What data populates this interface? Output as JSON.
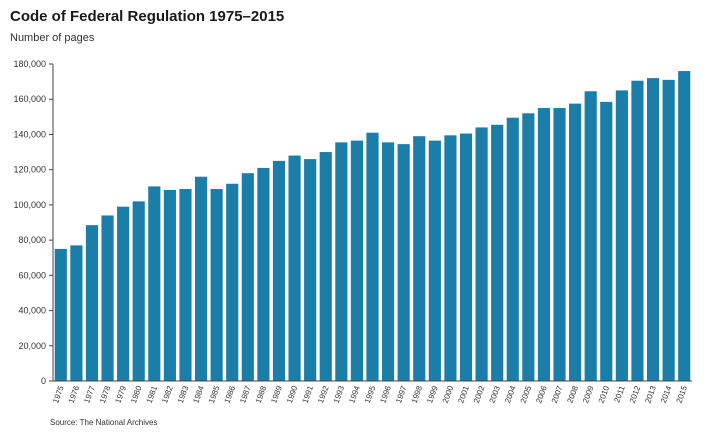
{
  "header": {
    "title": "Code of Federal Regulation 1975–2015",
    "subtitle": "Number of pages"
  },
  "footer": {
    "source": "Source: The National Archives"
  },
  "colors": {
    "bar": "#1a7ea8",
    "axis": "#444444"
  },
  "chart_data": {
    "type": "bar",
    "title": "Code of Federal Regulation 1975–2015",
    "ylabel": "Number of pages",
    "xlabel": "",
    "ylim": [
      0,
      180000
    ],
    "yticks": [
      0,
      20000,
      40000,
      60000,
      80000,
      100000,
      120000,
      140000,
      160000,
      180000
    ],
    "ytick_labels": [
      "0",
      "20,000",
      "40,000",
      "60,000",
      "80,000",
      "100,000",
      "120,000",
      "140,000",
      "160,000",
      "180,000"
    ],
    "grid": false,
    "categories": [
      "1975",
      "1976",
      "1977",
      "1978",
      "1979",
      "1980",
      "1981",
      "1982",
      "1983",
      "1984",
      "1985",
      "1986",
      "1987",
      "1988",
      "1989",
      "1990",
      "1991",
      "1992",
      "1993",
      "1994",
      "1995",
      "1996",
      "1997",
      "1998",
      "1999",
      "2000",
      "2001",
      "2002",
      "2003",
      "2004",
      "2005",
      "2006",
      "2007",
      "2008",
      "2009",
      "2010",
      "2011",
      "2012",
      "2013",
      "2014",
      "2015"
    ],
    "values": [
      75000,
      77000,
      88500,
      94000,
      99000,
      102000,
      110500,
      108500,
      109000,
      116000,
      109000,
      112000,
      118000,
      121000,
      125000,
      128000,
      126000,
      130000,
      135500,
      136500,
      141000,
      135500,
      134500,
      139000,
      136500,
      139500,
      140500,
      144000,
      145500,
      149500,
      152000,
      155000,
      155000,
      157500,
      164500,
      158500,
      165000,
      170500,
      172000,
      171000,
      176000
    ]
  }
}
